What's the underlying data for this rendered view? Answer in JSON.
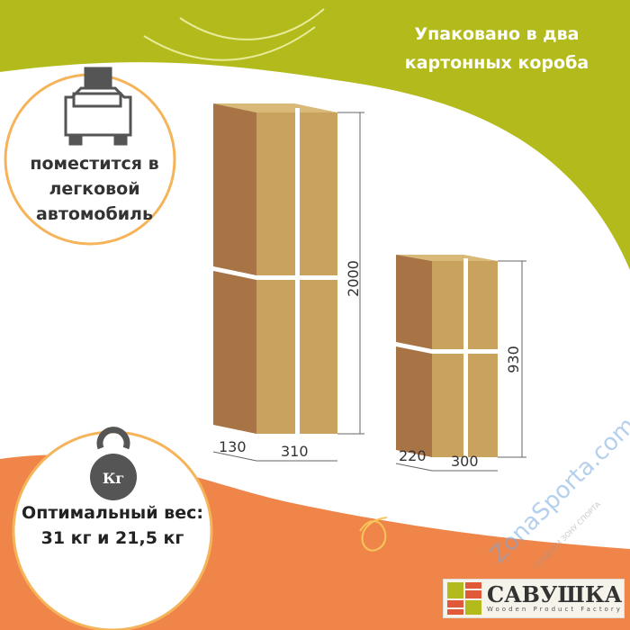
{
  "header": {
    "title": "Упаковано в два картонных короба"
  },
  "car_badge": {
    "icon": "car-with-box-icon",
    "text": "поместится в легковой автомобиль"
  },
  "weight_badge": {
    "icon": "kettlebell-icon",
    "icon_label": "Кг",
    "text": "Оптимальный вес: 31 кг и 21,5 кг"
  },
  "boxes": [
    {
      "depth": "130",
      "width": "310",
      "height": "2000"
    },
    {
      "depth": "220",
      "width": "300",
      "height": "930"
    }
  ],
  "logo": {
    "name": "САВУШКА",
    "subtitle": "Wooden Product Factory"
  },
  "watermark": {
    "text": "ZonaSporta.com",
    "tagline": "СОЗДАЕМ ЗОНУ СПОРТА"
  },
  "colors": {
    "green": "#b3bb1c",
    "orange": "#f0854a",
    "box_front": "#c9a25e",
    "box_side": "#a87446"
  }
}
